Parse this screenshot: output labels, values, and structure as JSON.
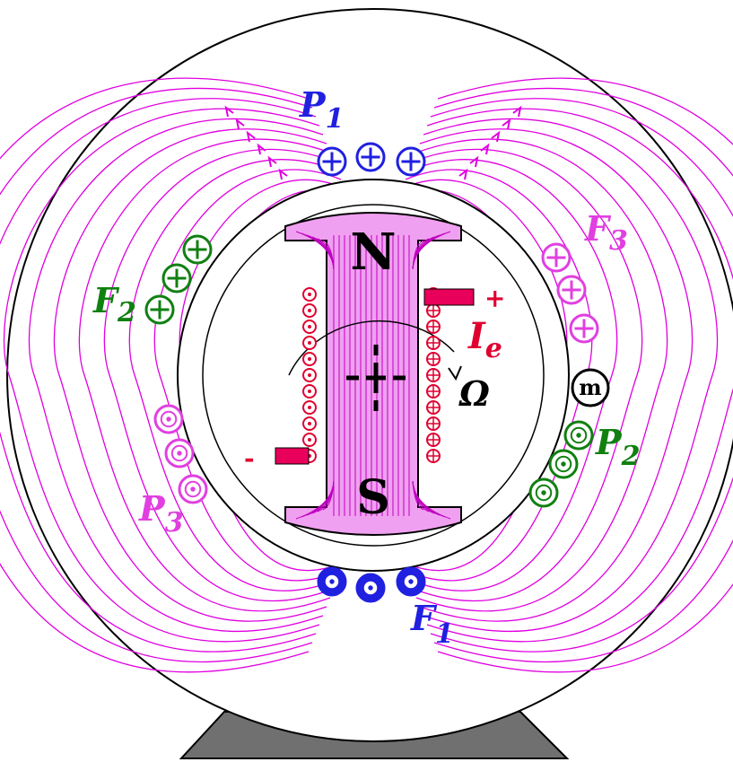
{
  "colors": {
    "field_lines": "#e000e0",
    "phase_p1": "#2020e0",
    "phase_p2": "#108010",
    "phase_p3": "#e040e0",
    "rotor_body": "#e870e8",
    "rotor_outline": "#c000c0",
    "winding": "#e00030",
    "base": "#707070",
    "ink": "#000000"
  },
  "labels": {
    "north": "N",
    "south": "S",
    "p1": "P",
    "p1_sub": "1",
    "p2": "P",
    "p2_sub": "2",
    "p3": "P",
    "p3_sub": "3",
    "f1": "F",
    "f1_sub": "1",
    "f2": "F",
    "f2_sub": "2",
    "f3": "F",
    "f3_sub": "3",
    "ie": "I",
    "ie_sub": "e",
    "omega": "Ω",
    "m": "m",
    "plus": "+",
    "minus": "-"
  }
}
